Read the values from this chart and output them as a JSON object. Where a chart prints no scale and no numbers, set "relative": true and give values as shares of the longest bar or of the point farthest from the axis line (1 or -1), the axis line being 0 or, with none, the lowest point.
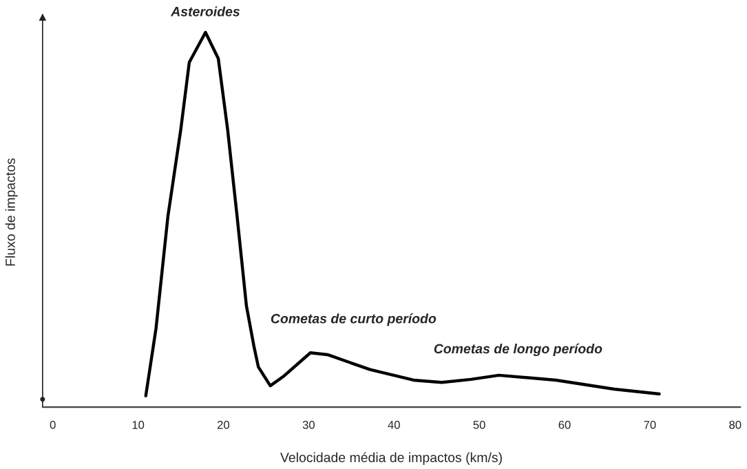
{
  "chart_data": {
    "type": "line",
    "relative": true,
    "xlabel": "Velocidade média de impactos (km/s)",
    "ylabel": "Fluxo de impactos",
    "xlim": [
      -1.2,
      80.6
    ],
    "xticks": [
      0,
      10,
      20,
      30,
      40,
      50,
      60,
      70,
      80
    ],
    "grid": false,
    "legend": false,
    "marker": "none",
    "line_style": "solid",
    "series": [
      {
        "color": "#000000",
        "x": [
          10.9,
          12.1,
          13.5,
          15.0,
          16.0,
          17.9,
          19.4,
          20.5,
          21.6,
          22.7,
          23.6,
          24.1,
          25.5,
          27.1,
          30.2,
          32.2,
          37.2,
          42.3,
          45.6,
          49.0,
          52.3,
          59.0,
          65.8,
          71.1
        ],
        "values": [
          0.03,
          0.21,
          0.51,
          0.74,
          0.92,
          1.0,
          0.93,
          0.74,
          0.51,
          0.27,
          0.16,
          0.107,
          0.057,
          0.083,
          0.145,
          0.14,
          0.1,
          0.072,
          0.066,
          0.074,
          0.085,
          0.072,
          0.048,
          0.035
        ]
      }
    ],
    "annotations": [
      {
        "text": "Asteroides",
        "x": 17.9,
        "y": 1.0
      },
      {
        "text": "Cometas de curto período",
        "x": 30.2,
        "y": 0.145
      },
      {
        "text": "Cometas de longo período",
        "x": 52.3,
        "y": 0.085
      }
    ]
  }
}
